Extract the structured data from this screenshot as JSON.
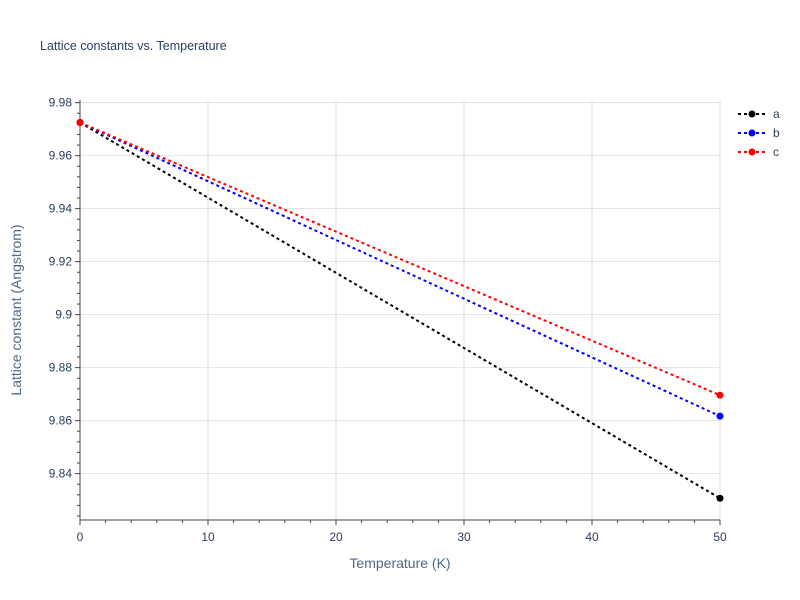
{
  "chart_data": {
    "type": "line",
    "title": "Lattice constants vs. Temperature",
    "xlabel": "Temperature (K)",
    "ylabel": "Lattice constant (Angstrom)",
    "xlim": [
      0,
      50
    ],
    "ylim": [
      9.8225,
      9.981
    ],
    "xticks": [
      0,
      10,
      20,
      30,
      40,
      50
    ],
    "xtick_labels": [
      "0",
      "10",
      "20",
      "30",
      "40",
      "50"
    ],
    "yticks": [
      9.84,
      9.86,
      9.88,
      9.9,
      9.92,
      9.94,
      9.96,
      9.98
    ],
    "ytick_labels": [
      "9.84",
      "9.86",
      "9.88",
      "9.9",
      "9.92",
      "9.94",
      "9.96",
      "9.98"
    ],
    "grid": true,
    "legend_position": "top-right",
    "series": [
      {
        "name": "a",
        "color": "#000000",
        "x": [
          0,
          50
        ],
        "y": [
          9.9725,
          9.8307
        ]
      },
      {
        "name": "b",
        "color": "#0000ff",
        "x": [
          0,
          50
        ],
        "y": [
          9.9725,
          9.8617
        ]
      },
      {
        "name": "c",
        "color": "#ff0000",
        "x": [
          0,
          50
        ],
        "y": [
          9.9725,
          9.8696
        ]
      }
    ]
  }
}
